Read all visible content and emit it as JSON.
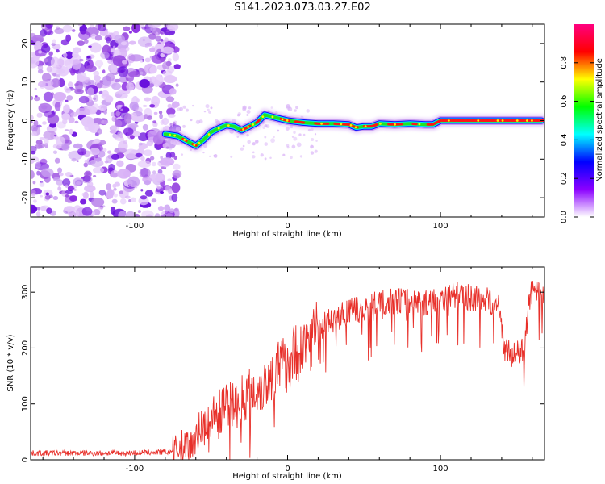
{
  "title": "S141.2023.073.03.27.E02",
  "chart_data": [
    {
      "type": "heatmap",
      "xlabel": "Height of straight line (km)",
      "ylabel": "Frequency (Hz)",
      "xlim": [
        -168,
        168
      ],
      "ylim": [
        -25,
        25
      ],
      "xticks": [
        -100,
        0,
        100
      ],
      "yticks": [
        -20,
        -10,
        0,
        10,
        20
      ],
      "colorbar": {
        "label": "Normalized spectral amplitude",
        "range": [
          0,
          1
        ],
        "ticks": [
          "0.0",
          "0.2",
          "0.4",
          "0.6",
          "0.8"
        ],
        "colors": [
          "#ffffff",
          "#8b00ff",
          "#0000ff",
          "#00ffff",
          "#00ff00",
          "#ffff00",
          "#ff0000",
          "#ff0080"
        ]
      },
      "noise_region": [
        -168,
        -78
      ],
      "ridge": {
        "x": [
          -80,
          -72,
          -65,
          -60,
          -55,
          -50,
          -45,
          -40,
          -35,
          -30,
          -25,
          -20,
          -15,
          -10,
          -5,
          0,
          10,
          20,
          30,
          40,
          45,
          50,
          55,
          60,
          70,
          80,
          90,
          95,
          100,
          110,
          120,
          130,
          140,
          150,
          160,
          166
        ],
        "y": [
          -3.5,
          -4,
          -5.5,
          -6.5,
          -5,
          -3,
          -2,
          -1.2,
          -1.5,
          -2.5,
          -1.5,
          -0.5,
          1.5,
          1,
          0.5,
          0,
          -0.5,
          -0.8,
          -0.8,
          -1,
          -1.8,
          -1.5,
          -1.5,
          -0.8,
          -1,
          -0.8,
          -1,
          -1,
          0,
          0,
          0,
          0,
          0,
          0,
          0,
          0
        ]
      }
    },
    {
      "type": "line",
      "xlabel": "Height of straight line (km)",
      "ylabel": "SNR (10 * v/v)",
      "xlim": [
        -168,
        168
      ],
      "ylim": [
        0,
        345
      ],
      "xticks": [
        -100,
        0,
        100
      ],
      "yticks": [
        0,
        100,
        200,
        300
      ],
      "color": "#e8302a",
      "series": [
        {
          "x": [
            -168,
            -150,
            -130,
            -110,
            -90,
            -78,
            -72,
            -65,
            -60,
            -55,
            -50,
            -45,
            -40,
            -35,
            -30,
            -25,
            -20,
            -15,
            -10,
            -5,
            0,
            5,
            10,
            15,
            20,
            25,
            30,
            40,
            50,
            60,
            70,
            80,
            90,
            100,
            110,
            120,
            130,
            138,
            140,
            142,
            145,
            150,
            155,
            158,
            160,
            165,
            168
          ],
          "y": [
            12,
            12,
            12,
            12,
            13,
            14,
            18,
            30,
            45,
            60,
            75,
            85,
            95,
            100,
            110,
            120,
            125,
            135,
            150,
            165,
            175,
            190,
            205,
            220,
            230,
            245,
            250,
            265,
            270,
            280,
            285,
            285,
            280,
            290,
            295,
            290,
            285,
            280,
            230,
            200,
            190,
            190,
            195,
            290,
            300,
            295,
            300
          ]
        }
      ]
    }
  ]
}
